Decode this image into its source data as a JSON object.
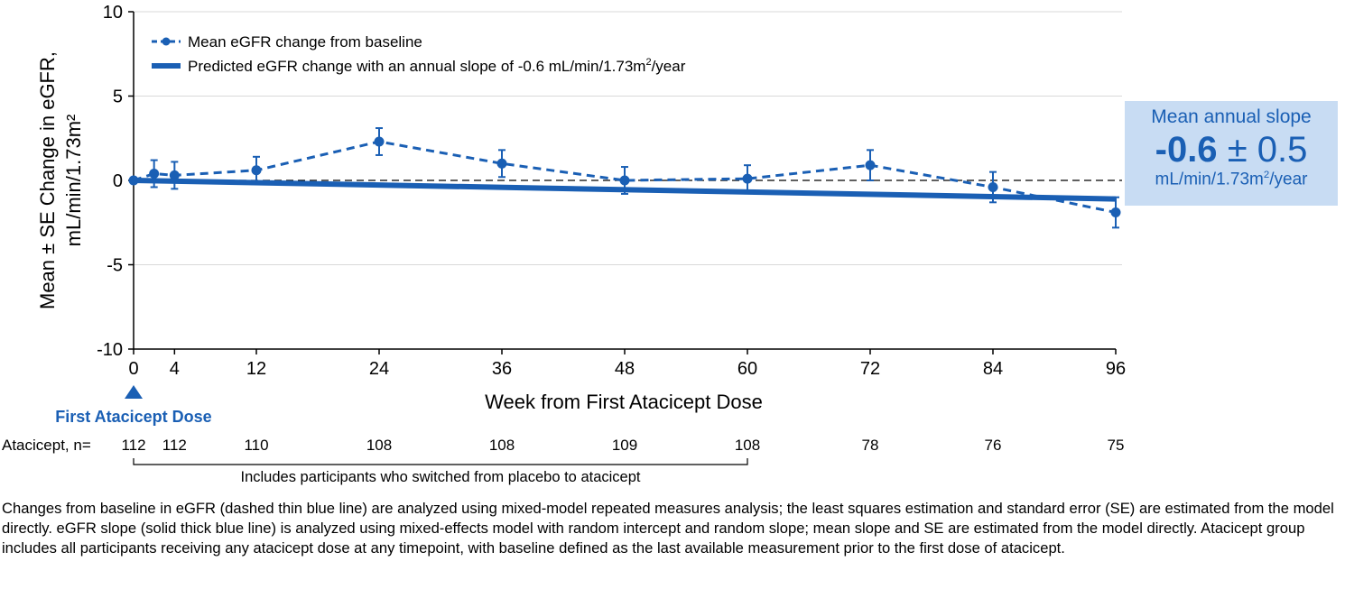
{
  "chart_data": {
    "type": "line",
    "ylabel_line1": "Mean ± SE Change in eGFR,",
    "ylabel_line2": "mL/min/1.73m²",
    "xlabel": "Week from First Atacicept Dose",
    "ylim": [
      -10,
      10
    ],
    "yticks": [
      10,
      5,
      0,
      -5,
      -10
    ],
    "xlim": [
      0,
      96
    ],
    "xticks": [
      0,
      4,
      12,
      24,
      36,
      48,
      60,
      72,
      84,
      96
    ],
    "reference_line_y": 0,
    "series": [
      {
        "name": "Mean eGFR change from baseline",
        "style": "dashed-thin",
        "x": [
          0,
          2,
          4,
          12,
          24,
          36,
          48,
          60,
          72,
          84,
          96
        ],
        "values": [
          0.0,
          0.4,
          0.3,
          0.6,
          2.3,
          1.0,
          0.0,
          0.1,
          0.9,
          -0.4,
          -1.9
        ],
        "se": [
          0.0,
          0.8,
          0.8,
          0.8,
          0.8,
          0.8,
          0.8,
          0.8,
          0.9,
          0.9,
          0.9
        ]
      },
      {
        "name": "Predicted eGFR change with an annual slope of -0.6 mL/min/1.73m²/year",
        "style": "solid-thick",
        "x": [
          0,
          96
        ],
        "values": [
          0.0,
          -1.1
        ]
      }
    ],
    "annotation": {
      "marker_label": "First Atacicept Dose",
      "marker_x": 0
    },
    "at_risk": {
      "label": "Atacicept, n=",
      "x": [
        0,
        4,
        12,
        24,
        36,
        48,
        60,
        72,
        84,
        96
      ],
      "counts": [
        112,
        112,
        110,
        108,
        108,
        109,
        108,
        78,
        76,
        75
      ]
    },
    "bracket_label": "Includes participants who switched from placebo to atacicept",
    "bracket_range": [
      0,
      60
    ]
  },
  "legend": {
    "mean_label": "Mean eGFR change from baseline",
    "pred_label_prefix": "Predicted eGFR change with an annual slope of -0.6 mL/min/1.73m",
    "pred_label_sup": "2",
    "pred_label_suffix": "/year"
  },
  "callout": {
    "title": "Mean annual slope",
    "value_bold": "-0.6",
    "value_rest": "± 0.5",
    "unit_prefix": "mL/min/1.73m",
    "unit_sup": "2",
    "unit_suffix": "/year"
  },
  "footnote": "Changes from baseline in eGFR (dashed thin blue line) are analyzed using mixed-model repeated measures analysis; the least squares estimation and standard error (SE) are estimated from the model directly. eGFR slope (solid thick blue line) is analyzed using mixed-effects model with random intercept and random slope; mean slope and SE are estimated from the model directly. Atacicept group includes all participants receiving any atacicept dose at any timepoint, with baseline defined as the last available measurement prior to the first dose of atacicept.",
  "colors": {
    "series_blue": "#1a5fb4",
    "callout_bg": "#c8dcf3",
    "grid": "#d9d9d9"
  }
}
